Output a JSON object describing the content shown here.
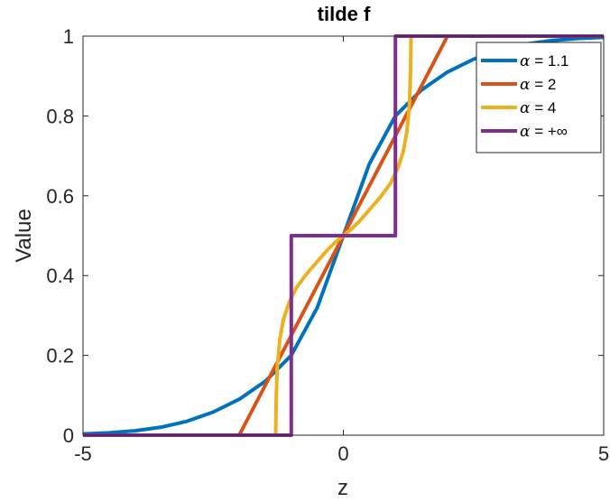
{
  "chart_data": {
    "type": "line",
    "title": "tilde f",
    "xlabel": "z",
    "ylabel": "Value",
    "xlim": [
      -5,
      5
    ],
    "ylim": [
      0,
      1
    ],
    "xticks": [
      -5,
      0,
      5
    ],
    "yticks": [
      0,
      0.2,
      0.4,
      0.6,
      0.8,
      1
    ],
    "xtick_labels": [
      "-5",
      "0",
      "5"
    ],
    "ytick_labels": [
      "0",
      "0.2",
      "0.4",
      "0.6",
      "0.8",
      "1"
    ],
    "grid": false,
    "legend_position": "top-right",
    "series": [
      {
        "name": "α = 1.1",
        "legend_symbol": "α",
        "legend_value": " = 1.1",
        "color": "#0072BD",
        "x": [
          -5,
          -4.5,
          -4,
          -3.5,
          -3,
          -2.5,
          -2,
          -1.5,
          -1,
          -0.5,
          0,
          0.5,
          1,
          1.5,
          2,
          2.5,
          3,
          3.5,
          4,
          4.5,
          5
        ],
        "y": [
          0.003,
          0.006,
          0.011,
          0.02,
          0.035,
          0.058,
          0.09,
          0.135,
          0.2,
          0.32,
          0.5,
          0.68,
          0.8,
          0.865,
          0.91,
          0.942,
          0.965,
          0.98,
          0.989,
          0.994,
          0.997
        ]
      },
      {
        "name": "α = 2",
        "legend_symbol": "α",
        "legend_value": " = 2",
        "color": "#D95319",
        "x": [
          -5,
          -2,
          -1.5,
          -1,
          -0.5,
          0,
          0.5,
          1,
          1.5,
          2,
          5
        ],
        "y": [
          0,
          0,
          0.125,
          0.25,
          0.375,
          0.5,
          0.625,
          0.75,
          0.875,
          1,
          1
        ]
      },
      {
        "name": "α = 4",
        "legend_symbol": "α",
        "legend_value": " = 4",
        "color": "#EDB120",
        "x": [
          -5,
          -1.3,
          -1.29,
          -1.27,
          -1.22,
          -1.15,
          -1.05,
          -0.9,
          -0.7,
          -0.5,
          -0.3,
          -0.15,
          0,
          0.15,
          0.3,
          0.5,
          0.7,
          0.9,
          1.05,
          1.15,
          1.22,
          1.27,
          1.29,
          1.3,
          5
        ],
        "y": [
          0,
          0,
          0.09,
          0.17,
          0.24,
          0.29,
          0.33,
          0.37,
          0.405,
          0.435,
          0.465,
          0.484,
          0.5,
          0.516,
          0.535,
          0.565,
          0.595,
          0.63,
          0.67,
          0.71,
          0.76,
          0.83,
          0.91,
          1,
          1
        ]
      },
      {
        "name": "α = +∞",
        "legend_symbol": "α",
        "legend_value": " = +∞",
        "color": "#7E2F8E",
        "x": [
          -5,
          -1,
          -1,
          1,
          1,
          5
        ],
        "y": [
          0,
          0,
          0.5,
          0.5,
          1,
          1
        ]
      }
    ]
  }
}
